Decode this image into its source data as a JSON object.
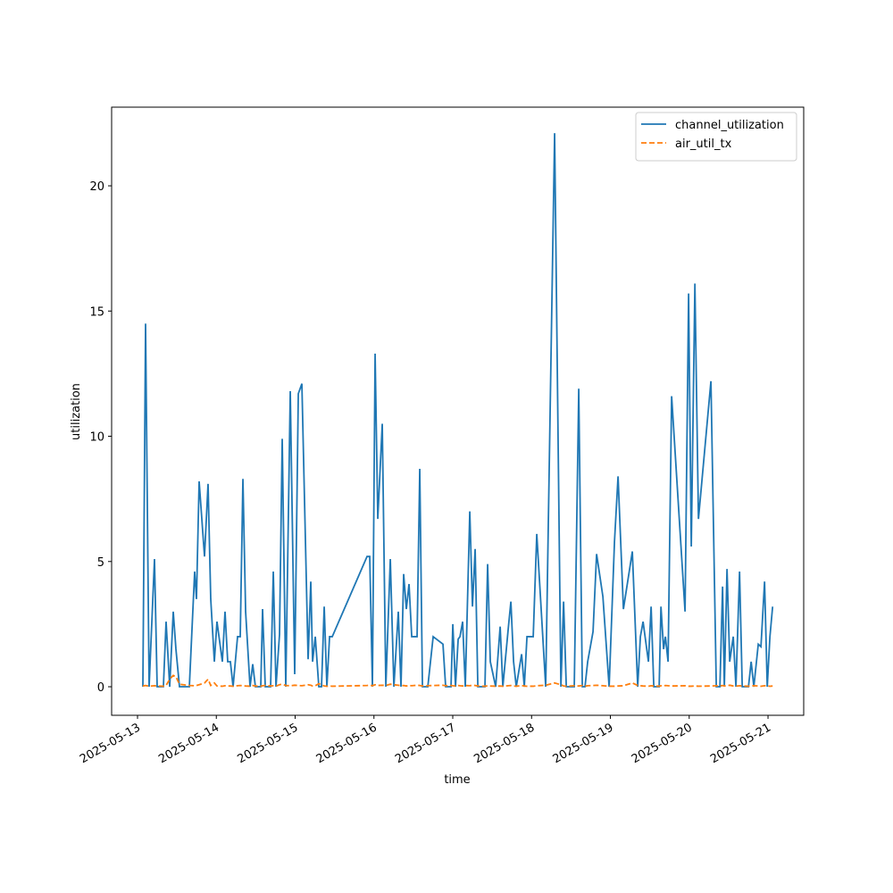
{
  "chart_data": {
    "type": "line",
    "x_label": "time",
    "y_label": "utilization",
    "x": [
      "2025-05-13 01:38",
      "2025-05-13 02:27",
      "2025-05-13 03:32",
      "2025-05-13 05:10",
      "2025-05-13 05:59",
      "2025-05-13 07:53",
      "2025-05-13 08:42",
      "2025-05-13 09:48",
      "2025-05-13 10:53",
      "2025-05-13 11:42",
      "2025-05-13 12:47",
      "2025-05-13 15:47",
      "2025-05-13 17:24",
      "2025-05-13 17:57",
      "2025-05-13 18:46",
      "2025-05-13 20:24",
      "2025-05-13 21:29",
      "2025-05-13 22:18",
      "2025-05-13 23:24",
      "2025-05-14 00:12",
      "2025-05-14 01:50",
      "2025-05-14 02:39",
      "2025-05-14 03:28",
      "2025-05-14 04:17",
      "2025-05-14 05:06",
      "2025-05-14 06:28",
      "2025-05-14 07:17",
      "2025-05-14 08:06",
      "2025-05-14 08:55",
      "2025-05-14 10:16",
      "2025-05-14 11:05",
      "2025-05-14 11:54",
      "2025-05-14 13:32",
      "2025-05-14 14:05",
      "2025-05-14 14:54",
      "2025-05-14 16:32",
      "2025-05-14 17:21",
      "2025-05-14 18:10",
      "2025-05-14 19:15",
      "2025-05-14 20:04",
      "2025-05-14 21:09",
      "2025-05-14 22:31",
      "2025-05-14 23:52",
      "2025-05-15 00:58",
      "2025-05-15 02:03",
      "2025-05-15 03:57",
      "2025-05-15 04:46",
      "2025-05-15 05:19",
      "2025-05-15 06:08",
      "2025-05-15 07:13",
      "2025-05-15 08:02",
      "2025-05-15 08:51",
      "2025-05-15 09:40",
      "2025-05-15 10:29",
      "2025-05-15 11:18",
      "2025-05-15 21:54",
      "2025-05-15 22:43",
      "2025-05-15 23:32",
      "2025-05-16 00:21",
      "2025-05-16 01:10",
      "2025-05-16 02:32",
      "2025-05-16 03:37",
      "2025-05-16 04:59",
      "2025-05-16 06:04",
      "2025-05-16 07:25",
      "2025-05-16 08:14",
      "2025-05-16 09:03",
      "2025-05-16 09:52",
      "2025-05-16 10:41",
      "2025-05-16 11:30",
      "2025-05-16 13:08",
      "2025-05-16 13:57",
      "2025-05-16 14:46",
      "2025-05-16 16:24",
      "2025-05-16 18:02",
      "2025-05-16 21:01",
      "2025-05-16 21:50",
      "2025-05-16 23:28",
      "2025-05-17 00:01",
      "2025-05-17 00:50",
      "2025-05-17 01:39",
      "2025-05-17 02:12",
      "2025-05-17 03:00",
      "2025-05-17 03:49",
      "2025-05-17 05:11",
      "2025-05-17 06:00",
      "2025-05-17 06:49",
      "2025-05-17 07:38",
      "2025-05-17 09:48",
      "2025-05-17 10:37",
      "2025-05-17 11:26",
      "2025-05-17 13:04",
      "2025-05-17 14:26",
      "2025-05-17 15:15",
      "2025-05-17 16:53",
      "2025-05-17 17:42",
      "2025-05-17 18:31",
      "2025-05-17 19:20",
      "2025-05-17 20:58",
      "2025-05-17 21:47",
      "2025-05-17 22:36",
      "2025-05-18 00:30",
      "2025-05-18 01:35",
      "2025-05-18 04:18",
      "2025-05-18 07:01",
      "2025-05-18 08:56",
      "2025-05-18 09:45",
      "2025-05-18 10:34",
      "2025-05-18 13:00",
      "2025-05-18 14:22",
      "2025-05-18 15:27",
      "2025-05-18 16:16",
      "2025-05-18 17:05",
      "2025-05-18 18:43",
      "2025-05-18 19:48",
      "2025-05-18 21:43",
      "2025-05-18 23:37",
      "2025-05-19 01:15",
      "2025-05-19 02:20",
      "2025-05-19 03:58",
      "2025-05-19 06:41",
      "2025-05-19 08:19",
      "2025-05-19 09:08",
      "2025-05-19 09:57",
      "2025-05-19 11:35",
      "2025-05-19 12:24",
      "2025-05-19 13:13",
      "2025-05-19 14:51",
      "2025-05-19 15:24",
      "2025-05-19 16:12",
      "2025-05-19 16:45",
      "2025-05-19 17:34",
      "2025-05-19 18:39",
      "2025-05-19 22:44",
      "2025-05-19 23:49",
      "2025-05-20 00:38",
      "2025-05-20 01:44",
      "2025-05-20 02:49",
      "2025-05-20 06:37",
      "2025-05-20 08:15",
      "2025-05-20 09:21",
      "2025-05-20 10:10",
      "2025-05-20 10:42",
      "2025-05-20 11:31",
      "2025-05-20 12:20",
      "2025-05-20 13:25",
      "2025-05-20 14:14",
      "2025-05-20 15:20",
      "2025-05-20 16:09",
      "2025-05-20 18:03",
      "2025-05-20 18:52",
      "2025-05-20 19:41",
      "2025-05-20 21:02",
      "2025-05-20 21:51",
      "2025-05-20 22:57",
      "2025-05-20 23:46",
      "2025-05-21 00:35",
      "2025-05-21 01:24"
    ],
    "series": [
      {
        "name": "channel_utilization",
        "color": "#1f77b4",
        "linestyle": "solid",
        "values": [
          0,
          14.5,
          0,
          5.1,
          0,
          0,
          2.6,
          0,
          3.0,
          1.5,
          0,
          0,
          4.6,
          3.5,
          8.2,
          5.2,
          8.1,
          3.5,
          1.0,
          2.6,
          1.0,
          3.0,
          1.0,
          1.0,
          0,
          2.0,
          2.0,
          8.3,
          3.0,
          0,
          0.9,
          0,
          0,
          3.1,
          0,
          0,
          4.6,
          0,
          2.1,
          9.9,
          0,
          11.8,
          0.5,
          11.7,
          12.1,
          1.1,
          4.2,
          1.0,
          2.0,
          0,
          0,
          3.2,
          0,
          2.0,
          2.0,
          5.2,
          5.2,
          0,
          13.3,
          6.7,
          10.5,
          0,
          5.1,
          0,
          3.0,
          0,
          4.5,
          3.1,
          4.1,
          2.0,
          2.0,
          8.7,
          0,
          0,
          2.0,
          1.7,
          0,
          0,
          2.5,
          0,
          1.9,
          2.0,
          2.6,
          0,
          7.0,
          3.2,
          5.5,
          0,
          0,
          4.9,
          1.0,
          0,
          2.4,
          0,
          2.3,
          3.4,
          1.0,
          0,
          1.3,
          0,
          2.0,
          2.0,
          6.1,
          0,
          22.1,
          0,
          3.4,
          0,
          0,
          11.9,
          0,
          0,
          1.0,
          2.2,
          5.3,
          3.6,
          0,
          5.8,
          8.4,
          3.1,
          5.4,
          0,
          2.0,
          2.6,
          1.0,
          3.2,
          0,
          0,
          3.2,
          1.5,
          2.0,
          1.0,
          11.6,
          3.0,
          15.7,
          5.6,
          16.1,
          6.7,
          12.2,
          0,
          0,
          4.0,
          0,
          4.7,
          1.0,
          2.0,
          0,
          4.6,
          0,
          0,
          1.0,
          0,
          1.7,
          1.6,
          4.2,
          0,
          2.0,
          3.2
        ]
      },
      {
        "name": "air_util_tx",
        "color": "#ff7f0e",
        "linestyle": "dashed",
        "values": [
          0.03,
          0.05,
          0.02,
          0.04,
          0.03,
          0.02,
          0.05,
          0.3,
          0.45,
          0.4,
          0.1,
          0.05,
          0.04,
          0.05,
          0.08,
          0.15,
          0.3,
          0.05,
          0.15,
          0.03,
          0.02,
          0.04,
          0.03,
          0.03,
          0.02,
          0.04,
          0.05,
          0.04,
          0.03,
          0.02,
          0.05,
          0.03,
          0.02,
          0.04,
          0.05,
          0.03,
          0.04,
          0.02,
          0.08,
          0.1,
          0.05,
          0.04,
          0.06,
          0.05,
          0.04,
          0.08,
          0.06,
          0.03,
          0.04,
          0.12,
          0.08,
          0.03,
          0.02,
          0.03,
          0.02,
          0.05,
          0.06,
          0.04,
          0.08,
          0.05,
          0.06,
          0.05,
          0.1,
          0.08,
          0.06,
          0.04,
          0.05,
          0.03,
          0.05,
          0.04,
          0.06,
          0.05,
          0.03,
          0.04,
          0.05,
          0.06,
          0.04,
          0.05,
          0.04,
          0.03,
          0.05,
          0.04,
          0.03,
          0.05,
          0.04,
          0.06,
          0.05,
          0.03,
          0.02,
          0.04,
          0.03,
          0.02,
          0.03,
          0.02,
          0.04,
          0.05,
          0.03,
          0.02,
          0.05,
          0.03,
          0.02,
          0.02,
          0.04,
          0.06,
          0.15,
          0.08,
          0.03,
          0.02,
          0.04,
          0.03,
          0.05,
          0.02,
          0.04,
          0.05,
          0.06,
          0.04,
          0.02,
          0.02,
          0.03,
          0.04,
          0.15,
          0.05,
          0.04,
          0.03,
          0.02,
          0.04,
          0.03,
          0.02,
          0.04,
          0.03,
          0.05,
          0.04,
          0.03,
          0.04,
          0.02,
          0.02,
          0.03,
          0.02,
          0.03,
          0.04,
          0.03,
          0.05,
          0.03,
          0.04,
          0.06,
          0.03,
          0.02,
          0.04,
          0.03,
          0.02,
          0.03,
          0.04,
          0.03,
          0.02,
          0.04,
          0.03,
          0.02,
          0.03
        ]
      }
    ],
    "xlim": [
      "2025-05-12 16:07",
      "2025-05-21 10:52"
    ],
    "xticks": [
      "2025-05-13",
      "2025-05-14",
      "2025-05-15",
      "2025-05-16",
      "2025-05-17",
      "2025-05-18",
      "2025-05-19",
      "2025-05-20",
      "2025-05-21"
    ],
    "ylim": [
      -1.14,
      23.14
    ],
    "yticks": [
      0,
      5,
      10,
      15,
      20
    ],
    "grid": false,
    "legend": "upper right"
  }
}
